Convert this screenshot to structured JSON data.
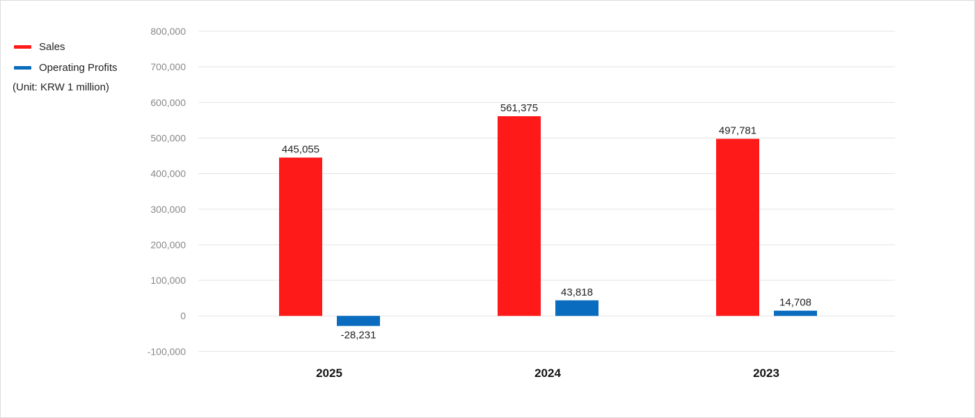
{
  "legend": {
    "items": [
      {
        "label": "Sales",
        "color": "#ff1a1a"
      },
      {
        "label": "Operating Profits",
        "color": "#0a6cbf"
      }
    ]
  },
  "unit_note": "(Unit: KRW 1 million)",
  "chart_data": {
    "type": "bar",
    "categories": [
      "2025",
      "2024",
      "2023"
    ],
    "series": [
      {
        "name": "Sales",
        "color": "#ff1a1a",
        "values": [
          445055,
          561375,
          497781
        ],
        "labels": [
          "445,055",
          "561,375",
          "497,781"
        ]
      },
      {
        "name": "Operating Profits",
        "color": "#0a6cbf",
        "values": [
          -28231,
          43818,
          14708
        ],
        "labels": [
          "-28,231",
          "43,818",
          "14,708"
        ]
      }
    ],
    "ylim": [
      -100000,
      800000
    ],
    "yticks": [
      800000,
      700000,
      600000,
      500000,
      400000,
      300000,
      200000,
      100000,
      0,
      -100000
    ],
    "ytick_labels": [
      "800,000",
      "700,000",
      "600,000",
      "500,000",
      "400,000",
      "300,000",
      "200,000",
      "100,000",
      "0",
      "-100,000"
    ],
    "grid": true,
    "legend_position": "top-left"
  }
}
